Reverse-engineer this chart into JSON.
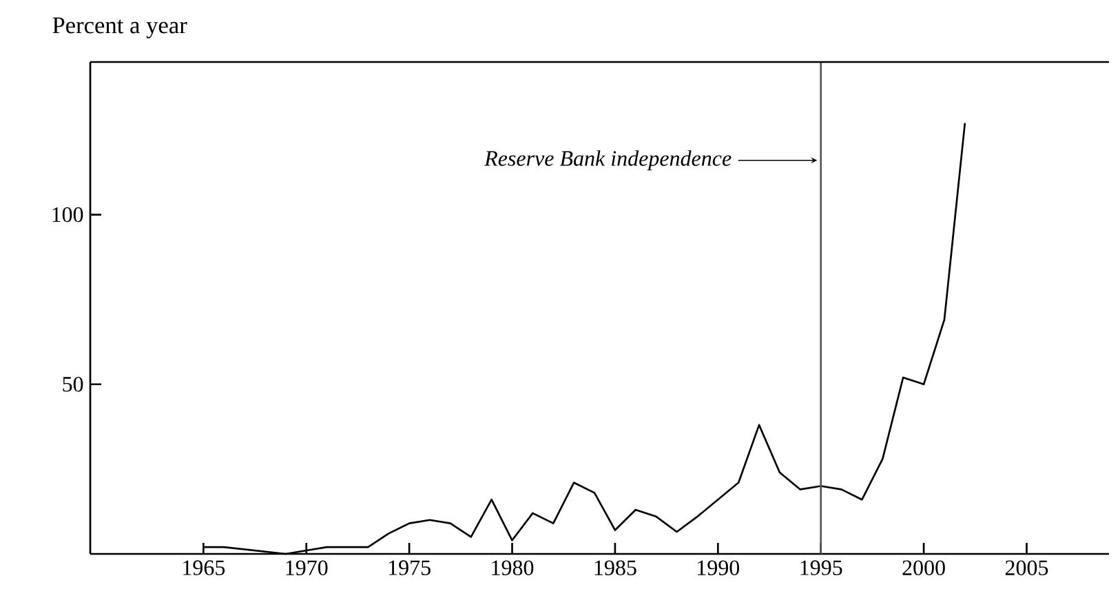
{
  "chart_data": {
    "type": "line",
    "ylabel": "Percent a year",
    "x": [
      1965,
      1966,
      1969,
      1970,
      1971,
      1973,
      1974,
      1975,
      1976,
      1977,
      1978,
      1979,
      1980,
      1981,
      1982,
      1983,
      1984,
      1985,
      1986,
      1987,
      1988,
      1989,
      1990,
      1991,
      1992,
      1993,
      1994,
      1995,
      1996,
      1997,
      1998,
      1999,
      2000,
      2001,
      2002
    ],
    "series": [
      {
        "color": "#000000",
        "values": [
          2,
          2,
          0,
          1,
          2,
          2,
          6,
          9,
          10,
          9,
          5,
          16,
          4,
          12,
          9,
          21,
          18,
          7,
          13,
          11,
          6.5,
          11,
          16,
          21,
          38,
          24,
          19,
          20,
          19,
          16,
          28,
          52,
          50,
          69,
          127
        ]
      }
    ],
    "xlim": [
      1959.5,
      2009
    ],
    "ylim": [
      0,
      145
    ],
    "xticks": [
      1965,
      1970,
      1975,
      1980,
      1985,
      1990,
      1995,
      2000,
      2005
    ],
    "yticks": [
      50,
      100
    ],
    "ref_lines": [
      {
        "axis": "x",
        "value": 1995,
        "label": "Reserve Bank independence",
        "color": "#555555"
      }
    ],
    "marker": "none",
    "line_style": "solid"
  }
}
